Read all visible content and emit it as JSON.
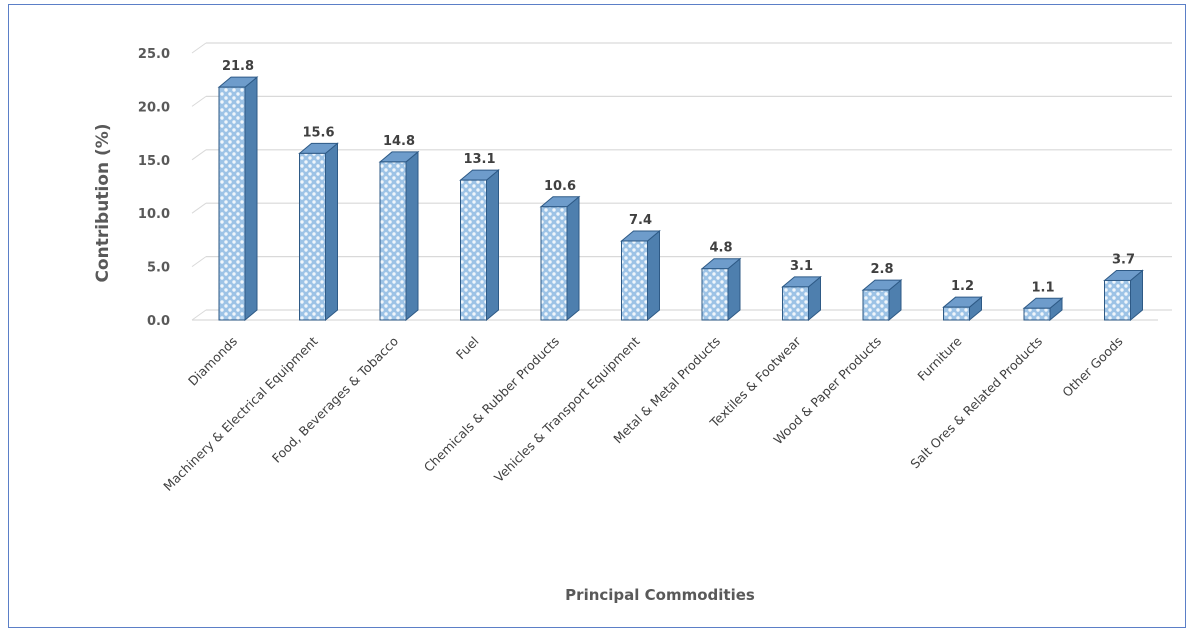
{
  "chart_data": {
    "type": "bar",
    "title": "",
    "xlabel": "Principal Commodities",
    "ylabel": "Contribution (%)",
    "ylim": [
      0,
      25
    ],
    "yticks": [
      "0.0",
      "5.0",
      "10.0",
      "15.0",
      "20.0",
      "25.0"
    ],
    "grid": true,
    "categories": [
      "Diamonds",
      "Machinery & Electrical Equipment",
      "Food, Beverages & Tobacco",
      "Fuel",
      "Chemicals & Rubber Products",
      "Vehicles & Transport Equipment",
      "Metal & Metal Products",
      "Textiles & Footwear",
      "Wood & Paper Products",
      "Furniture",
      "Salt Ores & Related Products",
      "Other Goods"
    ],
    "values": [
      21.8,
      15.6,
      14.8,
      13.1,
      10.6,
      7.4,
      4.8,
      3.1,
      2.8,
      1.2,
      1.1,
      3.7
    ],
    "data_labels": [
      "21.8",
      "15.6",
      "14.8",
      "13.1",
      "10.6",
      "7.4",
      "4.8",
      "3.1",
      "2.8",
      "1.2",
      "1.1",
      "3.7"
    ],
    "colors": {
      "bar_front": "#9dc3e6",
      "bar_side": "#4e7fae",
      "bar_top": "#6e9ccb",
      "bar_edge": "#2e5a86",
      "grid": "#d9d9d9",
      "frame": "#5b7fc7"
    }
  }
}
